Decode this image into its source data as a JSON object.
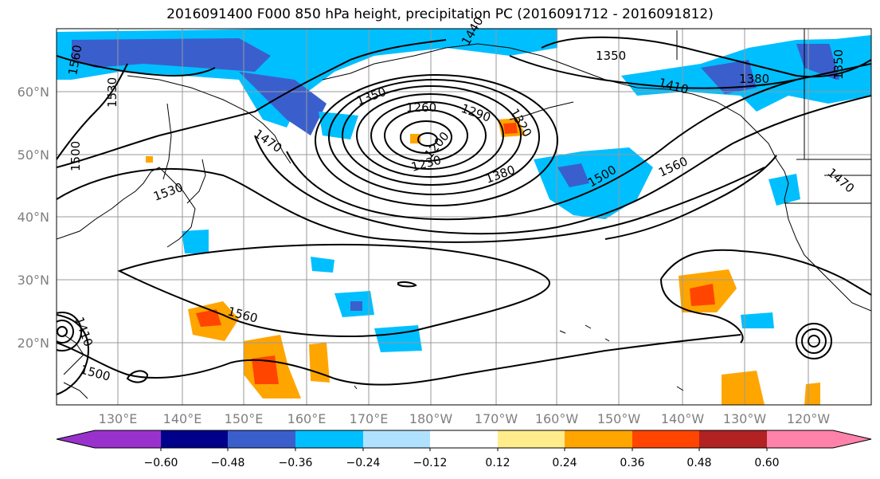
{
  "title": "2016091400 F000 850 hPa height, precipitation PC (2016091712 - 2016091812)",
  "lat_labels": [
    "60°N",
    "50°N",
    "40°N",
    "30°N",
    "20°N"
  ],
  "lon_labels": [
    "130°E",
    "140°E",
    "150°E",
    "160°E",
    "170°E",
    "180°W",
    "170°W",
    "160°W",
    "150°W",
    "140°W",
    "130°W",
    "120°W"
  ],
  "colorbar": {
    "ticks": [
      "−0.60",
      "−0.48",
      "−0.36",
      "−0.24",
      "−0.12",
      "0.12",
      "0.24",
      "0.36",
      "0.48",
      "0.60"
    ],
    "colors": [
      "#9932cc",
      "#00008b",
      "#3a5fcd",
      "#00bfff",
      "#b0e2ff",
      "#ffffff",
      "#ffec8b",
      "#ffa500",
      "#ff4500",
      "#b22222",
      "#ff82ab"
    ]
  },
  "contour_labels": [
    "1350",
    "1560",
    "1530",
    "1500",
    "1470",
    "1530",
    "1350",
    "1260",
    "1290",
    "1230",
    "1200",
    "1380",
    "1500",
    "1560",
    "1410",
    "1380",
    "1350",
    "1470",
    "1560",
    "1500",
    "1410",
    "1440",
    "1320"
  ]
}
